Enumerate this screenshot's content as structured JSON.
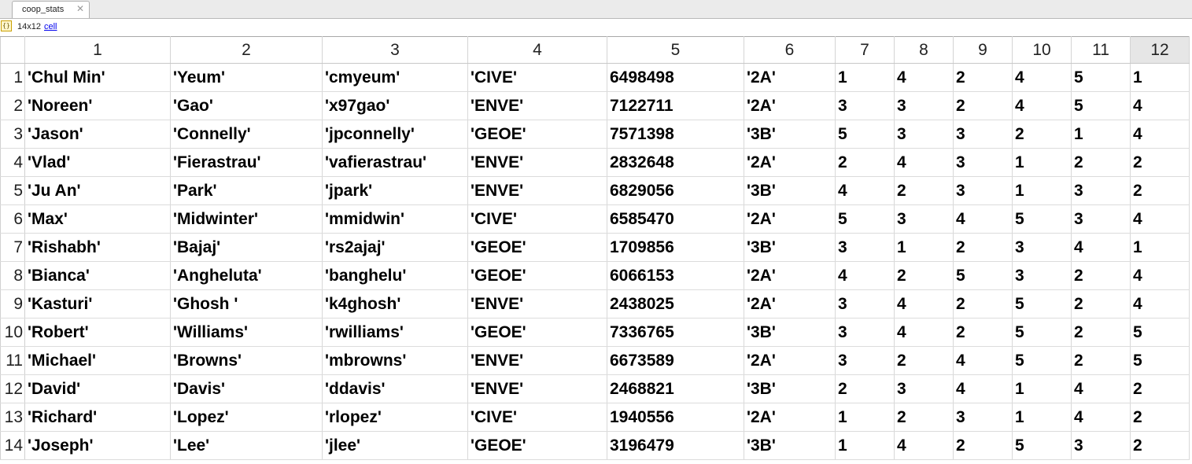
{
  "tab": {
    "title": "coop_stats"
  },
  "info": {
    "icon": "cell-array-icon",
    "size": "14x12",
    "class_link": "cell"
  },
  "grid": {
    "columns": [
      "1",
      "2",
      "3",
      "4",
      "5",
      "6",
      "7",
      "8",
      "9",
      "10",
      "11",
      "12"
    ],
    "selected_column": "12",
    "rows": [
      {
        "label": "1",
        "cells": [
          "'Chul Min'",
          "'Yeum'",
          "'cmyeum'",
          "'CIVE'",
          "6498498",
          "'2A'",
          "1",
          "4",
          "2",
          "4",
          "5",
          "1"
        ]
      },
      {
        "label": "2",
        "cells": [
          "'Noreen'",
          "'Gao'",
          "'x97gao'",
          "'ENVE'",
          "7122711",
          "'2A'",
          "3",
          "3",
          "2",
          "4",
          "5",
          "4"
        ]
      },
      {
        "label": "3",
        "cells": [
          "'Jason'",
          "'Connelly'",
          "'jpconnelly'",
          "'GEOE'",
          "7571398",
          "'3B'",
          "5",
          "3",
          "3",
          "2",
          "1",
          "4"
        ]
      },
      {
        "label": "4",
        "cells": [
          "'Vlad'",
          "'Fierastrau'",
          "'vafierastrau'",
          "'ENVE'",
          "2832648",
          "'2A'",
          "2",
          "4",
          "3",
          "1",
          "2",
          "2"
        ]
      },
      {
        "label": "5",
        "cells": [
          "'Ju An'",
          "'Park'",
          "'jpark'",
          "'ENVE'",
          "6829056",
          "'3B'",
          "4",
          "2",
          "3",
          "1",
          "3",
          "2"
        ]
      },
      {
        "label": "6",
        "cells": [
          "'Max'",
          "'Midwinter'",
          "'mmidwin'",
          "'CIVE'",
          "6585470",
          "'2A'",
          "5",
          "3",
          "4",
          "5",
          "3",
          "4"
        ]
      },
      {
        "label": "7",
        "cells": [
          "'Rishabh'",
          "'Bajaj'",
          "'rs2ajaj'",
          "'GEOE'",
          "1709856",
          "'3B'",
          "3",
          "1",
          "2",
          "3",
          "4",
          "1"
        ]
      },
      {
        "label": "8",
        "cells": [
          "'Bianca'",
          "'Angheluta'",
          "'banghelu'",
          "'GEOE'",
          "6066153",
          "'2A'",
          "4",
          "2",
          "5",
          "3",
          "2",
          "4"
        ]
      },
      {
        "label": "9",
        "cells": [
          "'Kasturi'",
          "'Ghosh '",
          "'k4ghosh'",
          "'ENVE'",
          "2438025",
          "'2A'",
          "3",
          "4",
          "2",
          "5",
          "2",
          "4"
        ]
      },
      {
        "label": "10",
        "cells": [
          "'Robert'",
          "'Williams'",
          "'rwilliams'",
          "'GEOE'",
          "7336765",
          "'3B'",
          "3",
          "4",
          "2",
          "5",
          "2",
          "5"
        ]
      },
      {
        "label": "11",
        "cells": [
          "'Michael'",
          "'Browns'",
          "'mbrowns'",
          "'ENVE'",
          "6673589",
          "'2A'",
          "3",
          "2",
          "4",
          "5",
          "2",
          "5"
        ]
      },
      {
        "label": "12",
        "cells": [
          "'David'",
          "'Davis'",
          "'ddavis'",
          "'ENVE'",
          "2468821",
          "'3B'",
          "2",
          "3",
          "4",
          "1",
          "4",
          "2"
        ]
      },
      {
        "label": "13",
        "cells": [
          "'Richard'",
          "'Lopez'",
          "'rlopez'",
          "'CIVE'",
          "1940556",
          "'2A'",
          "1",
          "2",
          "3",
          "1",
          "4",
          "2"
        ]
      },
      {
        "label": "14",
        "cells": [
          "'Joseph'",
          "'Lee'",
          "'jlee'",
          "'GEOE'",
          "3196479",
          "'3B'",
          "1",
          "4",
          "2",
          "5",
          "3",
          "2"
        ]
      }
    ]
  }
}
